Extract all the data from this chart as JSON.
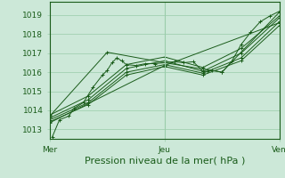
{
  "bg_color": "#cce8d8",
  "plot_bg_color": "#cce8d8",
  "grid_color": "#99ccaa",
  "line_color": "#1a5c1a",
  "xlabel": "Pression niveau de la mer( hPa )",
  "xlabel_fontsize": 8,
  "tick_fontsize": 6.5,
  "xlim": [
    0,
    48
  ],
  "ylim": [
    1012.5,
    1019.7
  ],
  "yticks": [
    1013,
    1014,
    1015,
    1016,
    1017,
    1018,
    1019
  ],
  "xtick_positions": [
    0,
    24,
    48
  ],
  "xtick_labels": [
    "Mer",
    "Jeu",
    "Ven"
  ],
  "series": [
    [
      0.5,
      1012.6,
      2,
      1013.5,
      4,
      1013.7,
      5,
      1014.1,
      7,
      1014.4,
      9,
      1015.2,
      11,
      1015.85,
      12,
      1016.1,
      13,
      1016.5,
      14,
      1016.75,
      15,
      1016.6,
      16,
      1016.4,
      18,
      1016.35,
      20,
      1016.45,
      22,
      1016.45,
      24,
      1016.5,
      26,
      1016.55,
      28,
      1016.5,
      30,
      1016.55,
      32,
      1016.05,
      33,
      1016.05,
      34,
      1016.1,
      36,
      1016.0,
      38,
      1016.55,
      40,
      1017.45,
      42,
      1018.1,
      44,
      1018.65,
      46,
      1018.95,
      48,
      1019.2
    ],
    [
      0,
      1013.6,
      8,
      1014.55,
      16,
      1016.2,
      24,
      1016.6,
      32,
      1016.05,
      40,
      1017.0,
      48,
      1018.85
    ],
    [
      0,
      1013.75,
      8,
      1014.75,
      16,
      1016.4,
      24,
      1016.8,
      32,
      1016.25,
      40,
      1017.25,
      48,
      1018.95
    ],
    [
      0,
      1013.5,
      8,
      1014.4,
      16,
      1016.0,
      24,
      1016.4,
      32,
      1015.95,
      40,
      1016.75,
      48,
      1018.65
    ],
    [
      0,
      1013.4,
      8,
      1014.3,
      16,
      1015.85,
      24,
      1016.3,
      32,
      1015.85,
      40,
      1016.6,
      48,
      1018.45
    ],
    [
      0,
      1013.35,
      24,
      1016.35,
      48,
      1018.6
    ],
    [
      0,
      1013.7,
      12,
      1017.05,
      24,
      1016.5,
      36,
      1016.0,
      48,
      1019.15
    ]
  ]
}
